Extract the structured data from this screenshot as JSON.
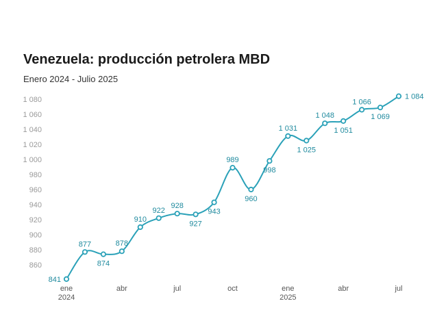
{
  "header": {
    "title": "Venezuela: producción petrolera MBD",
    "subtitle": "Enero 2024 - Julio 2025"
  },
  "chart_data": {
    "type": "line",
    "title": "Venezuela: producción petrolera MBD",
    "subtitle": "Enero 2024 - Julio 2025",
    "xlabel": "",
    "ylabel": "",
    "x": [
      "2024-01",
      "2024-02",
      "2024-03",
      "2024-04",
      "2024-05",
      "2024-06",
      "2024-07",
      "2024-08",
      "2024-09",
      "2024-10",
      "2024-11",
      "2024-12",
      "2025-01",
      "2025-02",
      "2025-03",
      "2025-04",
      "2025-05",
      "2025-06",
      "2025-07"
    ],
    "values": [
      841,
      877,
      874,
      878,
      910,
      922,
      928,
      927,
      943,
      989,
      960,
      998,
      1031,
      1025,
      1048,
      1051,
      1066,
      1069,
      1084
    ],
    "data_labels": [
      "841",
      "877",
      "874",
      "878",
      "910",
      "922",
      "928",
      "927",
      "943",
      "989",
      "960",
      "998",
      "1 031",
      "1 025",
      "1 048",
      "1 051",
      "1 066",
      "1 069",
      "1 084"
    ],
    "ylim": [
      840,
      1090
    ],
    "y_ticks": [
      860,
      880,
      900,
      920,
      940,
      960,
      980,
      1000,
      1020,
      1040,
      1060,
      1080
    ],
    "y_tick_labels": [
      "860",
      "880",
      "900",
      "920",
      "940",
      "960",
      "980",
      "1 000",
      "1 020",
      "1 040",
      "1 060",
      "1 080"
    ],
    "x_ticks": [
      {
        "index": 0,
        "label": "ene",
        "year": "2024"
      },
      {
        "index": 3,
        "label": "abr",
        "year": ""
      },
      {
        "index": 6,
        "label": "jul",
        "year": ""
      },
      {
        "index": 9,
        "label": "oct",
        "year": ""
      },
      {
        "index": 12,
        "label": "ene",
        "year": "2025"
      },
      {
        "index": 15,
        "label": "abr",
        "year": ""
      },
      {
        "index": 18,
        "label": "jul",
        "year": ""
      }
    ],
    "line_color": "#2aa1b8",
    "grid": false,
    "legend": "none"
  }
}
